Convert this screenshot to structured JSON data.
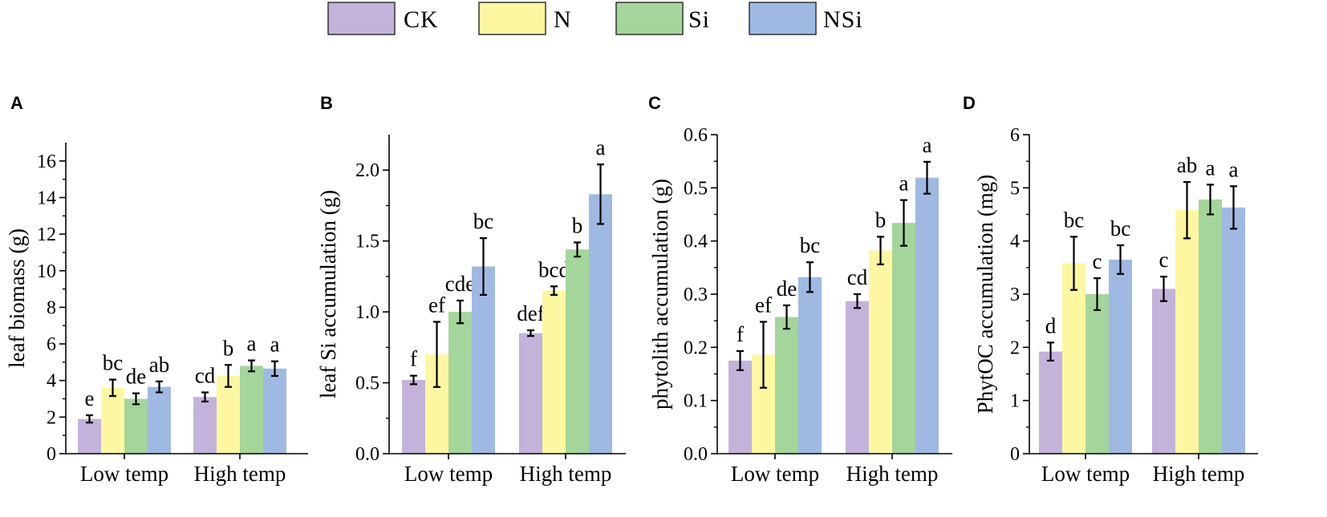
{
  "legend": [
    "CK",
    "N",
    "Si",
    "NSi"
  ],
  "colors": {
    "CK": "#c3b3da",
    "N": "#fdf7a1",
    "Si": "#a4d59b",
    "NSi": "#9fb9e2"
  },
  "chart_data": [
    {
      "type": "bar",
      "panel": "A",
      "title": "",
      "xlabel": "",
      "ylabel": "leaf biomass (g)",
      "ylim": [
        0,
        17
      ],
      "yticks": [
        0,
        2,
        4,
        6,
        8,
        10,
        12,
        14,
        16
      ],
      "ytick_labels": [
        "0",
        "2",
        "4",
        "6",
        "8",
        "10",
        "12",
        "14",
        "16"
      ],
      "categories": [
        "Low temp",
        "High temp"
      ],
      "series": [
        {
          "name": "CK",
          "values": [
            1.9,
            3.1
          ],
          "errors": [
            0.2,
            0.25
          ],
          "letters": [
            "e",
            "cd"
          ]
        },
        {
          "name": "N",
          "values": [
            3.6,
            4.25
          ],
          "errors": [
            0.45,
            0.6
          ],
          "letters": [
            "bc",
            "b"
          ]
        },
        {
          "name": "Si",
          "values": [
            3.0,
            4.8
          ],
          "errors": [
            0.3,
            0.3
          ],
          "letters": [
            "de",
            "a"
          ]
        },
        {
          "name": "NSi",
          "values": [
            3.65,
            4.65
          ],
          "errors": [
            0.3,
            0.4
          ],
          "letters": [
            "ab",
            "a"
          ]
        }
      ]
    },
    {
      "type": "bar",
      "panel": "B",
      "title": "",
      "xlabel": "",
      "ylabel": "leaf Si accumulation (g)",
      "ylim": [
        0,
        2.25
      ],
      "yticks": [
        0,
        0.5,
        1.0,
        1.5,
        2.0
      ],
      "ytick_labels": [
        "0.0",
        "0.5",
        "1.0",
        "1.5",
        "2.0"
      ],
      "categories": [
        "Low temp",
        "High temp"
      ],
      "series": [
        {
          "name": "CK",
          "values": [
            0.52,
            0.85
          ],
          "errors": [
            0.03,
            0.02
          ],
          "letters": [
            "f",
            "def"
          ]
        },
        {
          "name": "N",
          "values": [
            0.7,
            1.15
          ],
          "errors": [
            0.23,
            0.03
          ],
          "letters": [
            "ef",
            "bcd"
          ]
        },
        {
          "name": "Si",
          "values": [
            1.0,
            1.44
          ],
          "errors": [
            0.08,
            0.05
          ],
          "letters": [
            "cde",
            "b"
          ]
        },
        {
          "name": "NSi",
          "values": [
            1.32,
            1.83
          ],
          "errors": [
            0.2,
            0.21
          ],
          "letters": [
            "bc",
            "a"
          ]
        }
      ]
    },
    {
      "type": "bar",
      "panel": "C",
      "title": "",
      "xlabel": "",
      "ylabel": "phytolith accumulation (g)",
      "ylim": [
        0,
        0.6
      ],
      "yticks": [
        0,
        0.1,
        0.2,
        0.3,
        0.4,
        0.5,
        0.6
      ],
      "ytick_labels": [
        "0.0",
        "0.1",
        "0.2",
        "0.3",
        "0.4",
        "0.5",
        "0.6"
      ],
      "categories": [
        "Low temp",
        "High temp"
      ],
      "series": [
        {
          "name": "CK",
          "values": [
            0.175,
            0.287
          ],
          "errors": [
            0.018,
            0.013
          ],
          "letters": [
            "f",
            "cd"
          ]
        },
        {
          "name": "N",
          "values": [
            0.186,
            0.382
          ],
          "errors": [
            0.062,
            0.026
          ],
          "letters": [
            "ef",
            "b"
          ]
        },
        {
          "name": "Si",
          "values": [
            0.257,
            0.434
          ],
          "errors": [
            0.022,
            0.043
          ],
          "letters": [
            "de",
            "a"
          ]
        },
        {
          "name": "NSi",
          "values": [
            0.332,
            0.519
          ],
          "errors": [
            0.028,
            0.03
          ],
          "letters": [
            "bc",
            "a"
          ]
        }
      ]
    },
    {
      "type": "bar",
      "panel": "D",
      "title": "",
      "xlabel": "",
      "ylabel": "PhytOC accumulation (mg)",
      "ylim": [
        0,
        6
      ],
      "yticks": [
        0,
        1,
        2,
        3,
        4,
        5,
        6
      ],
      "ytick_labels": [
        "0",
        "1",
        "2",
        "3",
        "4",
        "5",
        "6"
      ],
      "categories": [
        "Low temp",
        "High temp"
      ],
      "series": [
        {
          "name": "CK",
          "values": [
            1.92,
            3.1
          ],
          "errors": [
            0.17,
            0.23
          ],
          "letters": [
            "d",
            "c"
          ]
        },
        {
          "name": "N",
          "values": [
            3.58,
            4.58
          ],
          "errors": [
            0.5,
            0.53
          ],
          "letters": [
            "bc",
            "ab"
          ]
        },
        {
          "name": "Si",
          "values": [
            3.0,
            4.78
          ],
          "errors": [
            0.3,
            0.28
          ],
          "letters": [
            "c",
            "a"
          ]
        },
        {
          "name": "NSi",
          "values": [
            3.65,
            4.63
          ],
          "errors": [
            0.27,
            0.4
          ],
          "letters": [
            "bc",
            "a"
          ]
        }
      ]
    }
  ]
}
